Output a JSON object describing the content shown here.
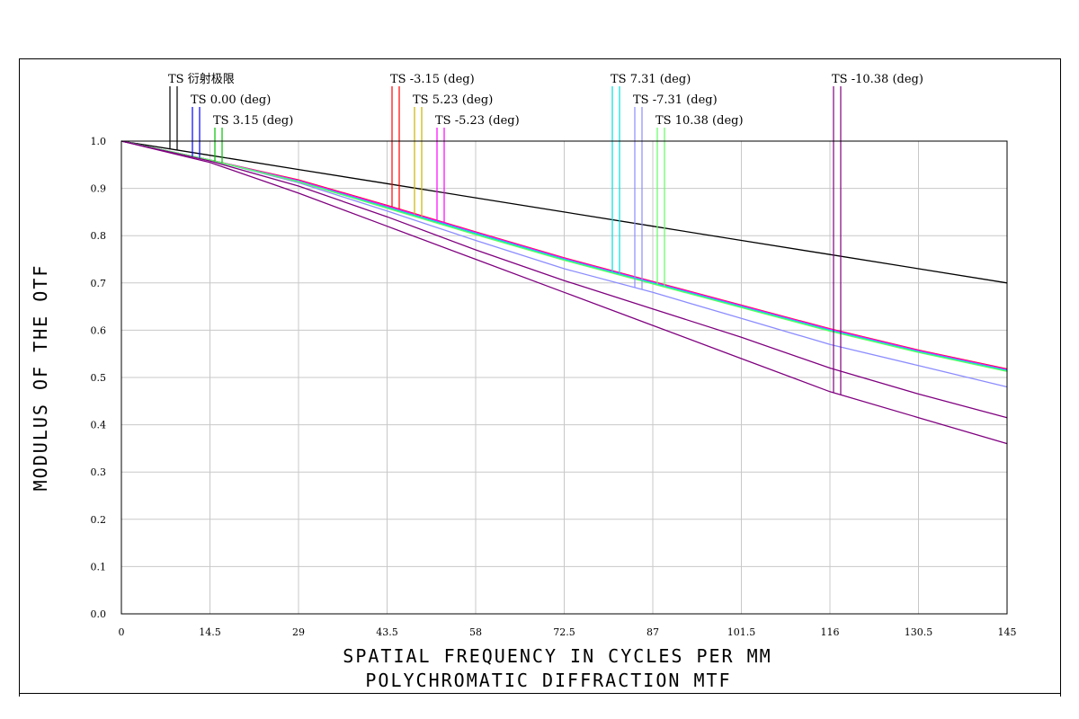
{
  "chart_data": {
    "type": "line",
    "title": "POLYCHROMATIC DIFFRACTION MTF",
    "xlabel": "SPATIAL FREQUENCY IN CYCLES PER MM",
    "ylabel": "MODULUS OF THE OTF",
    "xlim": [
      0,
      145
    ],
    "ylim": [
      0,
      1
    ],
    "grid": true,
    "legend_position": "top",
    "x_ticks": [
      "0",
      "14.5",
      "29",
      "43.5",
      "58",
      "72.5",
      "87",
      "101.5",
      "116",
      "130.5",
      "145"
    ],
    "y_ticks": [
      "0.0",
      "0.1",
      "0.2",
      "0.3",
      "0.4",
      "0.5",
      "0.6",
      "0.7",
      "0.8",
      "0.9",
      "1.0"
    ],
    "series": [
      {
        "name": "TS 衍射极限",
        "color": "#000000",
        "x": [
          0,
          14.5,
          29,
          43.5,
          58,
          72.5,
          87,
          101.5,
          116,
          130.5,
          145
        ],
        "y": [
          1.0,
          0.97,
          0.94,
          0.91,
          0.88,
          0.85,
          0.82,
          0.79,
          0.76,
          0.73,
          0.7
        ]
      },
      {
        "name": "TS 0.00 (deg)",
        "color": "#0000ff",
        "x": [
          0,
          14.5,
          29,
          43.5,
          58,
          72.5,
          87,
          101.5,
          116,
          130.5,
          145
        ],
        "y": [
          1.0,
          0.96,
          0.915,
          0.86,
          0.805,
          0.75,
          0.7,
          0.65,
          0.6,
          0.555,
          0.515
        ]
      },
      {
        "name": "TS 3.15 (deg)",
        "color": "#00c000",
        "x": [
          0,
          14.5,
          29,
          43.5,
          58,
          72.5,
          87,
          101.5,
          116,
          130.5,
          145
        ],
        "y": [
          1.0,
          0.96,
          0.915,
          0.86,
          0.805,
          0.75,
          0.7,
          0.65,
          0.6,
          0.555,
          0.515
        ]
      },
      {
        "name": "TS -3.15 (deg)",
        "color": "#ff0000",
        "x": [
          0,
          14.5,
          29,
          43.5,
          58,
          72.5,
          87,
          101.5,
          116,
          130.5,
          145
        ],
        "y": [
          1.0,
          0.96,
          0.918,
          0.864,
          0.808,
          0.753,
          0.703,
          0.653,
          0.603,
          0.558,
          0.518
        ]
      },
      {
        "name": "TS 5.23 (deg)",
        "color": "#c8b400",
        "x": [
          0,
          14.5,
          29,
          43.5,
          58,
          72.5,
          87,
          101.5,
          116,
          130.5,
          145
        ],
        "y": [
          1.0,
          0.96,
          0.916,
          0.862,
          0.806,
          0.751,
          0.701,
          0.651,
          0.601,
          0.556,
          0.516
        ]
      },
      {
        "name": "TS -5.23 (deg)",
        "color": "#ff00ff",
        "x": [
          0,
          14.5,
          29,
          43.5,
          58,
          72.5,
          87,
          101.5,
          116,
          130.5,
          145
        ],
        "y": [
          1.0,
          0.96,
          0.917,
          0.863,
          0.807,
          0.752,
          0.702,
          0.652,
          0.602,
          0.557,
          0.517
        ]
      },
      {
        "name": "TS 7.31 (deg)",
        "color": "#00e0e0",
        "x": [
          0,
          14.5,
          29,
          43.5,
          58,
          72.5,
          87,
          101.5,
          116,
          130.5,
          145
        ],
        "y": [
          1.0,
          0.96,
          0.915,
          0.86,
          0.805,
          0.75,
          0.7,
          0.65,
          0.6,
          0.555,
          0.515
        ]
      },
      {
        "name": "TS -7.31 (deg)",
        "color": "#8c8cff",
        "x": [
          0,
          14.5,
          29,
          43.5,
          58,
          72.5,
          87,
          101.5,
          116,
          130.5,
          145
        ],
        "y": [
          1.0,
          0.96,
          0.912,
          0.852,
          0.79,
          0.73,
          0.68,
          0.625,
          0.57,
          0.525,
          0.48
        ]
      },
      {
        "name": "TS 10.38 (deg)",
        "color": "#60ff60",
        "x": [
          0,
          14.5,
          29,
          43.5,
          58,
          72.5,
          87,
          101.5,
          116,
          130.5,
          145
        ],
        "y": [
          1.0,
          0.96,
          0.914,
          0.858,
          0.802,
          0.748,
          0.698,
          0.648,
          0.598,
          0.553,
          0.513
        ]
      },
      {
        "name": "TS -10.38 (deg)",
        "color": "#800080",
        "x": [
          0,
          14.5,
          29,
          43.5,
          58,
          72.5,
          87,
          101.5,
          116,
          130.5,
          145
        ],
        "y": [
          1.0,
          0.955,
          0.89,
          0.82,
          0.75,
          0.68,
          0.61,
          0.54,
          0.47,
          0.415,
          0.36
        ]
      },
      {
        "name": "",
        "color": "#800080",
        "x": [
          0,
          14.5,
          29,
          43.5,
          58,
          72.5,
          87,
          101.5,
          116,
          130.5,
          145
        ],
        "y": [
          1.0,
          0.958,
          0.905,
          0.84,
          0.77,
          0.705,
          0.645,
          0.585,
          0.52,
          0.465,
          0.415
        ]
      }
    ]
  }
}
